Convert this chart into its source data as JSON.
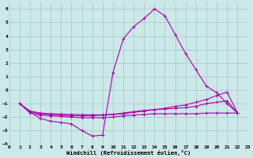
{
  "xlabel": "Windchill (Refroidissement éolien,°C)",
  "bg_color": "#cce8e8",
  "grid_color": "#aacccc",
  "line_color": "#aa00aa",
  "xlim": [
    0,
    23
  ],
  "ylim": [
    -4,
    6.5
  ],
  "xticks": [
    0,
    1,
    2,
    3,
    4,
    5,
    6,
    7,
    8,
    9,
    10,
    11,
    12,
    13,
    14,
    15,
    16,
    17,
    18,
    19,
    20,
    21,
    22,
    23
  ],
  "yticks": [
    -4,
    -3,
    -2,
    -1,
    0,
    1,
    2,
    3,
    4,
    5,
    6
  ],
  "curve1_x": [
    1,
    2,
    3,
    4,
    5,
    6,
    7,
    8,
    9,
    10,
    11,
    12,
    13,
    14,
    15,
    16,
    17,
    18,
    19,
    20,
    21,
    22
  ],
  "curve1_y": [
    -1.0,
    -1.6,
    -2.1,
    -2.3,
    -2.4,
    -2.5,
    -3.0,
    -3.4,
    -3.35,
    1.3,
    3.8,
    4.7,
    5.3,
    6.0,
    5.5,
    4.1,
    2.7,
    1.5,
    0.3,
    -0.2,
    -1.0,
    -1.7
  ],
  "curve2_x": [
    1,
    2,
    3,
    4,
    5,
    6,
    7,
    8,
    9,
    10,
    11,
    12,
    13,
    14,
    15,
    16,
    17,
    18,
    19,
    20,
    21,
    22
  ],
  "curve2_y": [
    -1.0,
    -1.7,
    -1.85,
    -1.9,
    -1.95,
    -2.0,
    -2.05,
    -2.05,
    -2.05,
    -2.0,
    -1.9,
    -1.85,
    -1.8,
    -1.75,
    -1.75,
    -1.75,
    -1.75,
    -1.75,
    -1.7,
    -1.7,
    -1.7,
    -1.7
  ],
  "curve3_x": [
    1,
    2,
    3,
    4,
    5,
    6,
    7,
    8,
    9,
    10,
    11,
    12,
    13,
    14,
    15,
    16,
    17,
    18,
    19,
    20,
    21,
    22
  ],
  "curve3_y": [
    -1.0,
    -1.6,
    -1.75,
    -1.8,
    -1.85,
    -1.9,
    -1.9,
    -1.9,
    -1.85,
    -1.8,
    -1.7,
    -1.6,
    -1.5,
    -1.45,
    -1.4,
    -1.35,
    -1.3,
    -1.2,
    -1.0,
    -0.9,
    -0.8,
    -1.7
  ],
  "curve4_x": [
    1,
    2,
    3,
    4,
    5,
    6,
    7,
    8,
    9,
    10,
    11,
    12,
    13,
    14,
    15,
    16,
    17,
    18,
    19,
    20,
    21,
    22
  ],
  "curve4_y": [
    -1.0,
    -1.55,
    -1.7,
    -1.75,
    -1.78,
    -1.8,
    -1.82,
    -1.83,
    -1.83,
    -1.8,
    -1.75,
    -1.65,
    -1.55,
    -1.45,
    -1.35,
    -1.2,
    -1.1,
    -0.9,
    -0.7,
    -0.4,
    -0.15,
    -1.7
  ]
}
